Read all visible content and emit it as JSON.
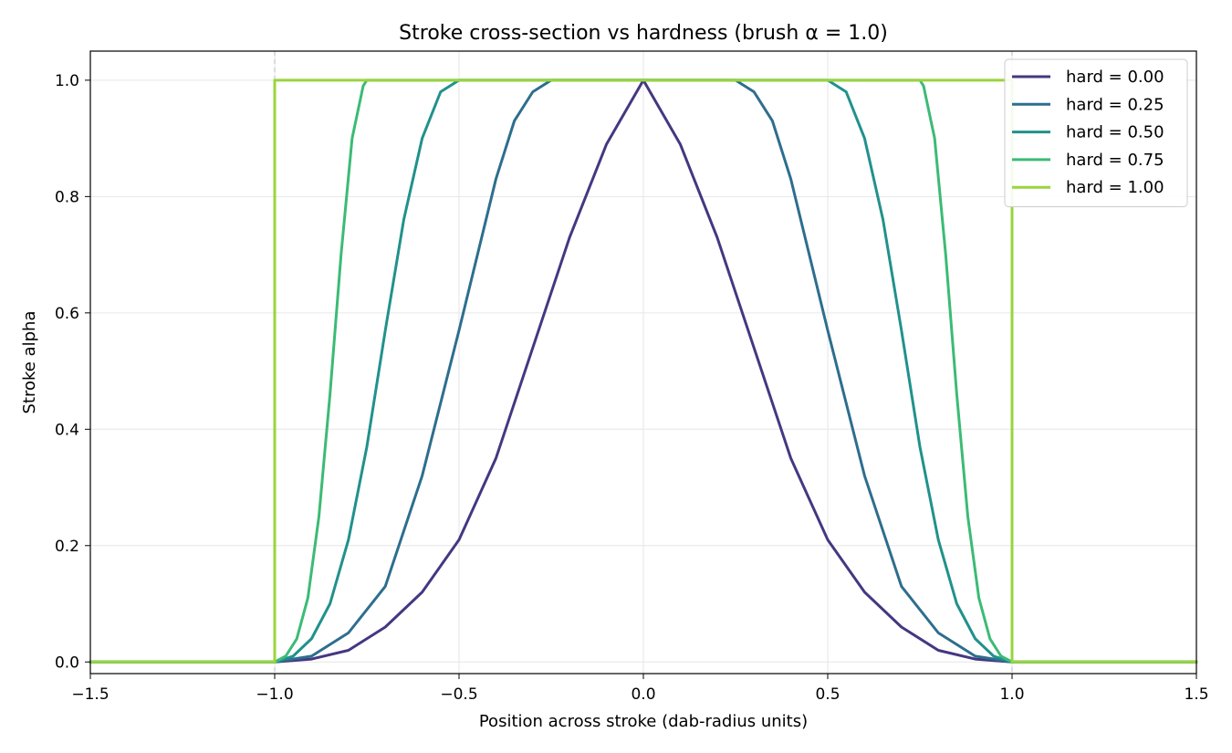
{
  "chart_data": {
    "type": "line",
    "title": "Stroke cross-section vs hardness (brush α = 1.0)",
    "xlabel": "Position across stroke (dab-radius units)",
    "ylabel": "Stroke alpha",
    "xlim": [
      -1.5,
      1.5
    ],
    "ylim": [
      -0.02,
      1.05
    ],
    "xticks": [
      -1.5,
      -1.0,
      -0.5,
      0.0,
      0.5,
      1.0,
      1.5
    ],
    "xtick_labels": [
      "−1.5",
      "−1.0",
      "−0.5",
      "0.0",
      "0.5",
      "1.0",
      "1.5"
    ],
    "yticks": [
      0.0,
      0.2,
      0.4,
      0.6,
      0.8,
      1.0
    ],
    "ytick_labels": [
      "0.0",
      "0.2",
      "0.4",
      "0.6",
      "0.8",
      "1.0"
    ],
    "grid": true,
    "reference_lines_x": [
      -1.0,
      1.0
    ],
    "legend_position": "top-right",
    "series": [
      {
        "name": "hard = 0.00",
        "color": "#453781",
        "x": [
          -1.5,
          -1.0,
          -0.9,
          -0.8,
          -0.7,
          -0.6,
          -0.5,
          -0.4,
          -0.3,
          -0.2,
          -0.1,
          0.0,
          0.1,
          0.2,
          0.3,
          0.4,
          0.5,
          0.6,
          0.7,
          0.8,
          0.9,
          1.0,
          1.5
        ],
        "y": [
          0.0,
          0.0,
          0.005,
          0.02,
          0.06,
          0.12,
          0.21,
          0.35,
          0.54,
          0.73,
          0.89,
          1.0,
          0.89,
          0.73,
          0.54,
          0.35,
          0.21,
          0.12,
          0.06,
          0.02,
          0.005,
          0.0,
          0.0
        ]
      },
      {
        "name": "hard = 0.25",
        "color": "#2d6e8e",
        "x": [
          -1.5,
          -1.0,
          -0.9,
          -0.8,
          -0.7,
          -0.6,
          -0.5,
          -0.4,
          -0.35,
          -0.3,
          -0.25,
          0.0,
          0.25,
          0.3,
          0.35,
          0.4,
          0.5,
          0.6,
          0.7,
          0.8,
          0.9,
          1.0,
          1.5
        ],
        "y": [
          0.0,
          0.0,
          0.01,
          0.05,
          0.13,
          0.32,
          0.57,
          0.83,
          0.93,
          0.98,
          1.0,
          1.0,
          1.0,
          0.98,
          0.93,
          0.83,
          0.57,
          0.32,
          0.13,
          0.05,
          0.01,
          0.0,
          0.0
        ]
      },
      {
        "name": "hard = 0.50",
        "color": "#21918c",
        "x": [
          -1.5,
          -1.0,
          -0.95,
          -0.9,
          -0.85,
          -0.8,
          -0.75,
          -0.7,
          -0.65,
          -0.6,
          -0.55,
          -0.5,
          0.0,
          0.5,
          0.55,
          0.6,
          0.65,
          0.7,
          0.75,
          0.8,
          0.85,
          0.9,
          0.95,
          1.0,
          1.5
        ],
        "y": [
          0.0,
          0.0,
          0.01,
          0.04,
          0.1,
          0.21,
          0.37,
          0.57,
          0.76,
          0.9,
          0.98,
          1.0,
          1.0,
          1.0,
          0.98,
          0.9,
          0.76,
          0.57,
          0.37,
          0.21,
          0.1,
          0.04,
          0.01,
          0.0,
          0.0
        ]
      },
      {
        "name": "hard = 0.75",
        "color": "#3bbb75",
        "x": [
          -1.5,
          -1.0,
          -0.97,
          -0.94,
          -0.91,
          -0.88,
          -0.85,
          -0.82,
          -0.79,
          -0.76,
          -0.75,
          0.0,
          0.75,
          0.76,
          0.79,
          0.82,
          0.85,
          0.88,
          0.91,
          0.94,
          0.97,
          1.0,
          1.5
        ],
        "y": [
          0.0,
          0.0,
          0.01,
          0.04,
          0.11,
          0.25,
          0.46,
          0.7,
          0.9,
          0.99,
          1.0,
          1.0,
          1.0,
          0.99,
          0.9,
          0.7,
          0.46,
          0.25,
          0.11,
          0.04,
          0.01,
          0.0,
          0.0
        ]
      },
      {
        "name": "hard = 1.00",
        "color": "#9ad43c",
        "x": [
          -1.5,
          -1.0,
          -1.0,
          1.0,
          1.0,
          1.5
        ],
        "y": [
          0.0,
          0.0,
          1.0,
          1.0,
          0.0,
          0.0
        ]
      }
    ]
  }
}
